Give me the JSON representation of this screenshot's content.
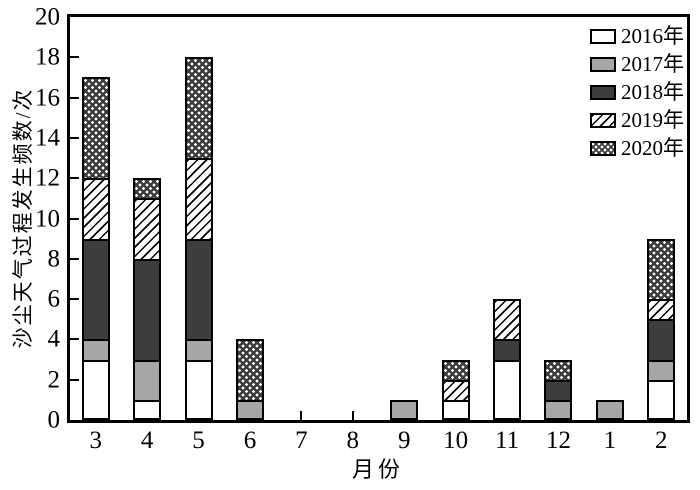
{
  "chart_data": {
    "type": "bar",
    "stacked": true,
    "title": "",
    "xlabel": "月份",
    "ylabel": "沙尘天气过程发生频数/次",
    "categories": [
      "3",
      "4",
      "5",
      "6",
      "7",
      "8",
      "9",
      "10",
      "11",
      "12",
      "1",
      "2"
    ],
    "series": [
      {
        "name": "2016年",
        "pattern": "white",
        "values": [
          3,
          1,
          3,
          0,
          0,
          0,
          0,
          1,
          3,
          0,
          0,
          2
        ]
      },
      {
        "name": "2017年",
        "pattern": "gray",
        "values": [
          1,
          2,
          1,
          1,
          0,
          0,
          1,
          0,
          0,
          1,
          1,
          1
        ]
      },
      {
        "name": "2018年",
        "pattern": "darkgray",
        "values": [
          5,
          5,
          5,
          0,
          0,
          0,
          0,
          0,
          1,
          1,
          0,
          2
        ]
      },
      {
        "name": "2019年",
        "pattern": "hatch",
        "values": [
          3,
          3,
          4,
          0,
          0,
          0,
          0,
          1,
          2,
          0,
          0,
          1
        ]
      },
      {
        "name": "2020年",
        "pattern": "dots",
        "values": [
          5,
          1,
          5,
          3,
          0,
          0,
          0,
          1,
          0,
          1,
          0,
          3
        ]
      }
    ],
    "ylim": [
      0,
      20
    ],
    "y_ticks": [
      0,
      2,
      4,
      6,
      8,
      10,
      12,
      14,
      16,
      18,
      20
    ],
    "grid": false,
    "legend_position": "top-right-inside",
    "colors": {
      "frame": "#000000",
      "bar_2016": "#ffffff",
      "bar_2017": "#a6a6a6",
      "bar_2018": "#3d3d3d",
      "bar_2019_hatch_fg": "#000000",
      "bar_2020_dots_bg": "#3d3d3d",
      "text": "#000000",
      "background": "#ffffff"
    }
  }
}
